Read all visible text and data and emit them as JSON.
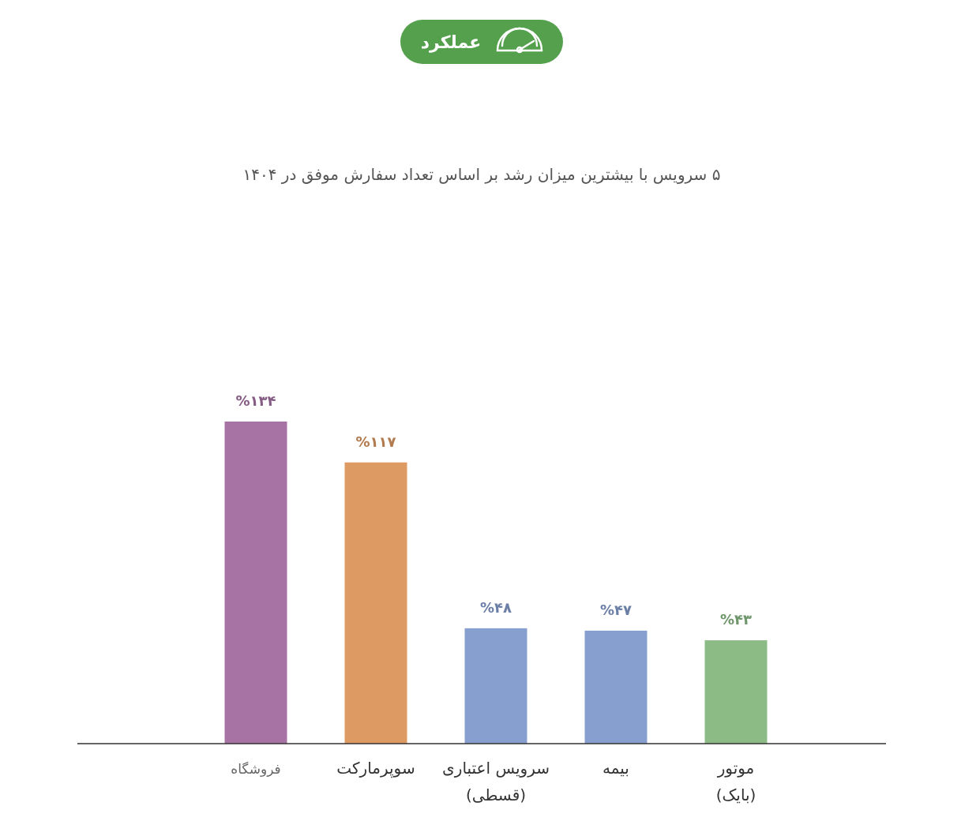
{
  "chart_data": {
    "type": "bar",
    "title": "عملکرد",
    "subtitle": "۵ سرویس با بیشترین میزان رشد بر اساس تعداد سفارش موفق در ۱۴۰۴",
    "categories": [
      "فروشگاه",
      "سوپرمارکت",
      "سرویس اعتباری\n(قسطی)",
      "بیمه",
      "موتور\n(بایک)"
    ],
    "values": [
      134,
      117,
      48,
      47,
      43
    ],
    "colors": [
      "#a673a4",
      "#dd9a63",
      "#879fcf",
      "#879fcf",
      "#8cbb86"
    ],
    "value_labels": [
      "%۱۳۴",
      "%۱۱۷",
      "%۴۸",
      "%۴۷",
      "%۴۳"
    ]
  }
}
